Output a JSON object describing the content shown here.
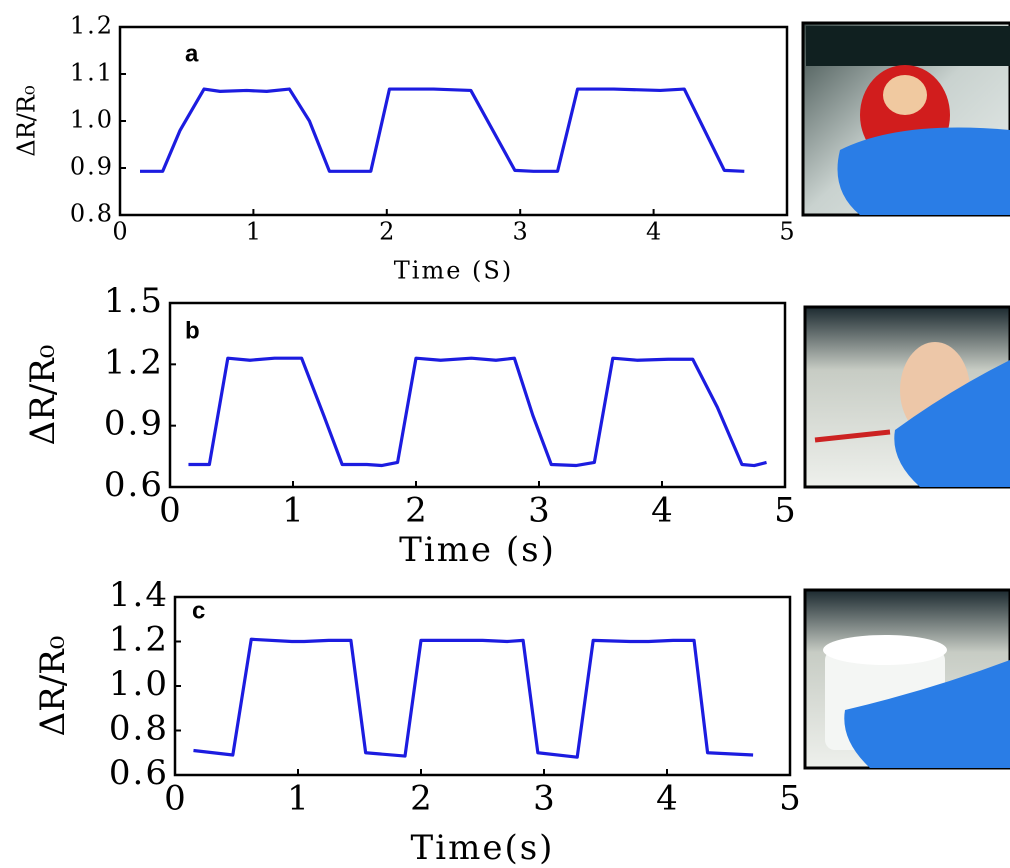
{
  "chart_data": [
    {
      "type": "line",
      "label": "a",
      "xlabel": "Time (S)",
      "ylabel": "ΔR/R₀",
      "color": "#1c1ce0",
      "x": [
        0.15,
        0.32,
        0.45,
        0.63,
        0.75,
        0.95,
        1.1,
        1.27,
        1.42,
        1.57,
        1.7,
        1.88,
        2.02,
        2.35,
        2.63,
        2.96,
        3.1,
        3.28,
        3.43,
        3.7,
        4.05,
        4.23,
        4.53,
        4.68
      ],
      "values": [
        0.893,
        0.893,
        0.98,
        1.068,
        1.063,
        1.065,
        1.063,
        1.068,
        1.0,
        0.893,
        0.893,
        0.893,
        1.068,
        1.068,
        1.065,
        0.895,
        0.893,
        0.893,
        1.068,
        1.068,
        1.065,
        1.068,
        0.895,
        0.893
      ],
      "xlim": [
        0,
        5
      ],
      "xticks": [
        0,
        1,
        2,
        3,
        4,
        5
      ],
      "ylim": [
        0.8,
        1.2
      ],
      "yticks": [
        0.8,
        0.9,
        {
          "value": 1,
          "label": "1.0"
        },
        1.1,
        1.2
      ]
    },
    {
      "type": "line",
      "label": "b",
      "xlabel": "Time (s)",
      "ylabel": "ΔR/R₀",
      "color": "#1c1ce0",
      "x": [
        0.15,
        0.32,
        0.47,
        0.65,
        0.85,
        1.07,
        1.25,
        1.4,
        1.6,
        1.72,
        1.85,
        2.0,
        2.2,
        2.45,
        2.65,
        2.8,
        2.95,
        3.1,
        3.3,
        3.45,
        3.6,
        3.8,
        4.05,
        4.25,
        4.45,
        4.65,
        4.75,
        4.85
      ],
      "values": [
        0.71,
        0.71,
        1.23,
        1.22,
        1.23,
        1.23,
        0.95,
        0.71,
        0.71,
        0.705,
        0.72,
        1.23,
        1.22,
        1.23,
        1.22,
        1.23,
        0.95,
        0.71,
        0.705,
        0.72,
        1.23,
        1.22,
        1.225,
        1.225,
        0.99,
        0.71,
        0.705,
        0.72
      ],
      "xlim": [
        0,
        5
      ],
      "xticks": [
        0,
        1,
        2,
        3,
        4,
        5
      ],
      "ylim": [
        0.6,
        1.5
      ],
      "yticks": [
        0.6,
        0.9,
        1.2,
        1.5
      ]
    },
    {
      "type": "line",
      "label": "c",
      "xlabel": "Time(s)",
      "ylabel": "ΔR/R₀",
      "color": "#1c1ce0",
      "x": [
        0.15,
        0.47,
        0.62,
        0.95,
        1.05,
        1.25,
        1.43,
        1.55,
        1.87,
        2.0,
        2.35,
        2.5,
        2.7,
        2.83,
        2.95,
        3.27,
        3.4,
        3.7,
        3.85,
        4.05,
        4.22,
        4.33,
        4.7
      ],
      "values": [
        0.71,
        0.69,
        1.21,
        1.2,
        1.2,
        1.205,
        1.205,
        0.7,
        0.685,
        1.205,
        1.205,
        1.205,
        1.2,
        1.205,
        0.7,
        0.68,
        1.205,
        1.2,
        1.2,
        1.205,
        1.205,
        0.7,
        0.69
      ],
      "xlim": [
        0,
        5
      ],
      "xticks": [
        0,
        1,
        2,
        3,
        4,
        5
      ],
      "ylim": [
        0.6,
        1.4
      ],
      "yticks": [
        0.6,
        0.8,
        {
          "value": 1,
          "label": "1.0"
        },
        1.2,
        1.4
      ]
    }
  ]
}
